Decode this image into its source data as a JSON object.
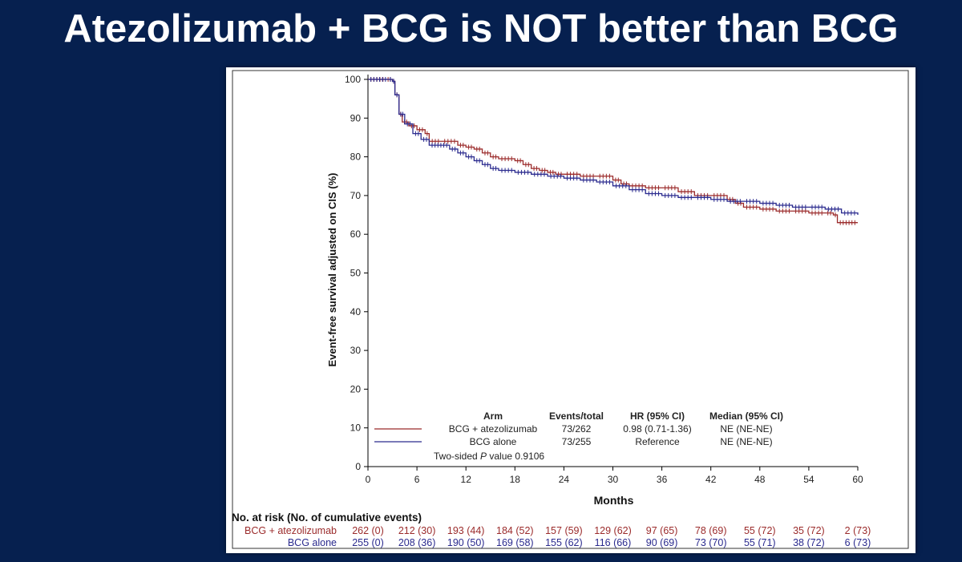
{
  "slide": {
    "title": "Atezolizumab + BCG is NOT better than BCG"
  },
  "chart_data": {
    "type": "line",
    "subtype": "kaplan-meier",
    "xlabel": "Months",
    "ylabel": "Event-free survival adjusted on CIS (%)",
    "xlim": [
      0,
      60
    ],
    "ylim": [
      0,
      100
    ],
    "x_ticks": [
      0,
      6,
      12,
      18,
      24,
      30,
      36,
      42,
      48,
      54,
      60
    ],
    "y_ticks": [
      0,
      10,
      20,
      30,
      40,
      50,
      60,
      70,
      80,
      90,
      100
    ],
    "grid": false,
    "legend_position": "bottom-left",
    "legend": {
      "headers": {
        "arm": "Arm",
        "events": "Events/total",
        "hr": "HR (95% CI)",
        "median": "Median (95% CI)"
      },
      "rows": [
        {
          "arm": "BCG + atezolizumab",
          "events": "73/262",
          "hr": "0.98 (0.71-1.36)",
          "median": "NE (NE-NE)"
        },
        {
          "arm": "BCG alone",
          "events": "73/255",
          "hr": "Reference",
          "median": "NE (NE-NE)"
        }
      ],
      "pvalue_prefix": "Two-sided",
      "pvalue_italic": "P",
      "pvalue_suffix": "value",
      "pvalue": "0.9106"
    },
    "series": [
      {
        "name": "BCG + atezolizumab",
        "color": "#9b2b2b",
        "x": [
          0,
          2.2,
          3.0,
          3.3,
          3.8,
          4.2,
          5.0,
          6.0,
          7.0,
          7.5,
          9,
          11,
          12,
          13,
          14,
          15,
          16,
          18,
          19,
          20,
          21,
          22,
          23,
          24,
          26,
          28,
          30,
          31,
          32,
          34,
          36,
          38,
          40,
          42,
          44,
          45,
          46,
          48,
          50,
          52,
          54,
          56,
          57,
          57.5,
          60
        ],
        "y": [
          100,
          100,
          99.5,
          96,
          91,
          89,
          88,
          87,
          86,
          84,
          84,
          83,
          82.5,
          82,
          81,
          80,
          79.5,
          79,
          78,
          77,
          76.5,
          76,
          75.5,
          75.5,
          75,
          75,
          74,
          73,
          72.5,
          72,
          72,
          71,
          70,
          70,
          69,
          68,
          67,
          66.5,
          66,
          66,
          65.5,
          65.5,
          65,
          63,
          63
        ]
      },
      {
        "name": "BCG alone",
        "color": "#2a2a8e",
        "x": [
          0,
          2.5,
          3.0,
          3.3,
          3.8,
          4.5,
          5.5,
          6.5,
          7.5,
          10,
          11,
          12,
          13,
          14,
          15,
          16,
          18,
          20,
          22,
          24,
          26,
          28,
          30,
          32,
          34,
          36,
          38,
          40,
          42,
          44,
          46,
          48,
          50,
          52,
          54,
          56,
          58,
          60
        ],
        "y": [
          100,
          100,
          99.5,
          96,
          91,
          88.5,
          86,
          84.5,
          83,
          82,
          81,
          80,
          79,
          78,
          77,
          76.5,
          76,
          75.5,
          75,
          74.5,
          74,
          73.5,
          72.5,
          71.5,
          70.5,
          70,
          69.5,
          69.5,
          69,
          68.5,
          68.5,
          68,
          67.5,
          67,
          67,
          66.5,
          65.5,
          65
        ]
      }
    ],
    "risk_table": {
      "title": "No. at risk (No. of cumulative events)",
      "rows": [
        {
          "name": "BCG + atezolizumab",
          "color": "#9b2b2b",
          "values": [
            "262 (0)",
            "212 (30)",
            "193 (44)",
            "184 (52)",
            "157 (59)",
            "129 (62)",
            "97 (65)",
            "78 (69)",
            "55 (72)",
            "35 (72)",
            "2 (73)"
          ]
        },
        {
          "name": "BCG alone",
          "color": "#2a2a8e",
          "values": [
            "255 (0)",
            "208 (36)",
            "190 (50)",
            "169 (58)",
            "155 (62)",
            "116 (66)",
            "90 (69)",
            "73 (70)",
            "55 (71)",
            "38 (72)",
            "6 (73)"
          ]
        }
      ]
    }
  }
}
